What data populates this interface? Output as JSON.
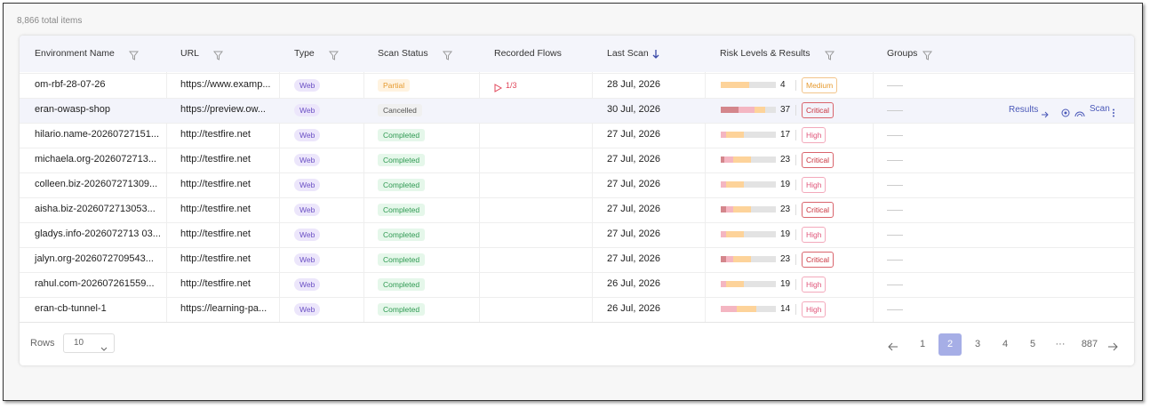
{
  "summary": "8,866 total items",
  "table": {
    "columns": [
      "Environment Name",
      "URL",
      "Type",
      "Scan Status",
      "Recorded Flows",
      "Last Scan",
      "Risk Levels & Results",
      "Groups"
    ],
    "rows": [
      {
        "name": "om-rbf-28-07-26",
        "url": "https://www.examp...",
        "type": "Web",
        "status": "Partial",
        "flows": "1/3",
        "last_scan": "28 Jul, 2026",
        "risk_count": "4",
        "risk_level": "Medium"
      },
      {
        "name": "eran-owasp-shop",
        "url": "https://preview.ow...",
        "type": "Web",
        "status": "Cancelled",
        "last_scan": "30 Jul, 2026",
        "risk_count": "37",
        "risk_level": "Critical"
      },
      {
        "name": "hilario.name-20260727151...",
        "url": "http://testfire.net",
        "type": "Web",
        "status": "Completed",
        "last_scan": "27 Jul, 2026",
        "risk_count": "17",
        "risk_level": "High"
      },
      {
        "name": "michaela.org-2026072713...",
        "url": "http://testfire.net",
        "type": "Web",
        "status": "Completed",
        "last_scan": "27 Jul, 2026",
        "risk_count": "23",
        "risk_level": "Critical"
      },
      {
        "name": "colleen.biz-202607271309...",
        "url": "http://testfire.net",
        "type": "Web",
        "status": "Completed",
        "last_scan": "27 Jul, 2026",
        "risk_count": "19",
        "risk_level": "High"
      },
      {
        "name": "aisha.biz-2026072713053...",
        "url": "http://testfire.net",
        "type": "Web",
        "status": "Completed",
        "last_scan": "27 Jul, 2026",
        "risk_count": "23",
        "risk_level": "Critical"
      },
      {
        "name": "gladys.info-2026072713 03...",
        "url": "http://testfire.net",
        "type": "Web",
        "status": "Completed",
        "last_scan": "27 Jul, 2026",
        "risk_count": "19",
        "risk_level": "High"
      },
      {
        "name": "jalyn.org-2026072709543...",
        "url": "http://testfire.net",
        "type": "Web",
        "status": "Completed",
        "last_scan": "27 Jul, 2026",
        "risk_count": "23",
        "risk_level": "Critical"
      },
      {
        "name": "rahul.com-202607261559...",
        "url": "http://testfire.net",
        "type": "Web",
        "status": "Completed",
        "last_scan": "26 Jul, 2026",
        "risk_count": "19",
        "risk_level": "High"
      },
      {
        "name": "eran-cb-tunnel-1",
        "url": "https://learning-pa...",
        "type": "Web",
        "status": "Completed",
        "last_scan": "26 Jul, 2026",
        "risk_count": "14",
        "risk_level": "High"
      }
    ]
  },
  "row_actions": {
    "results": "Results",
    "scan": "Scan"
  },
  "pagination": {
    "rows_label": "Rows",
    "rows_per_page": "10",
    "pages": [
      "1",
      "2",
      "3",
      "4",
      "5",
      "···",
      "887"
    ],
    "current": "2"
  }
}
